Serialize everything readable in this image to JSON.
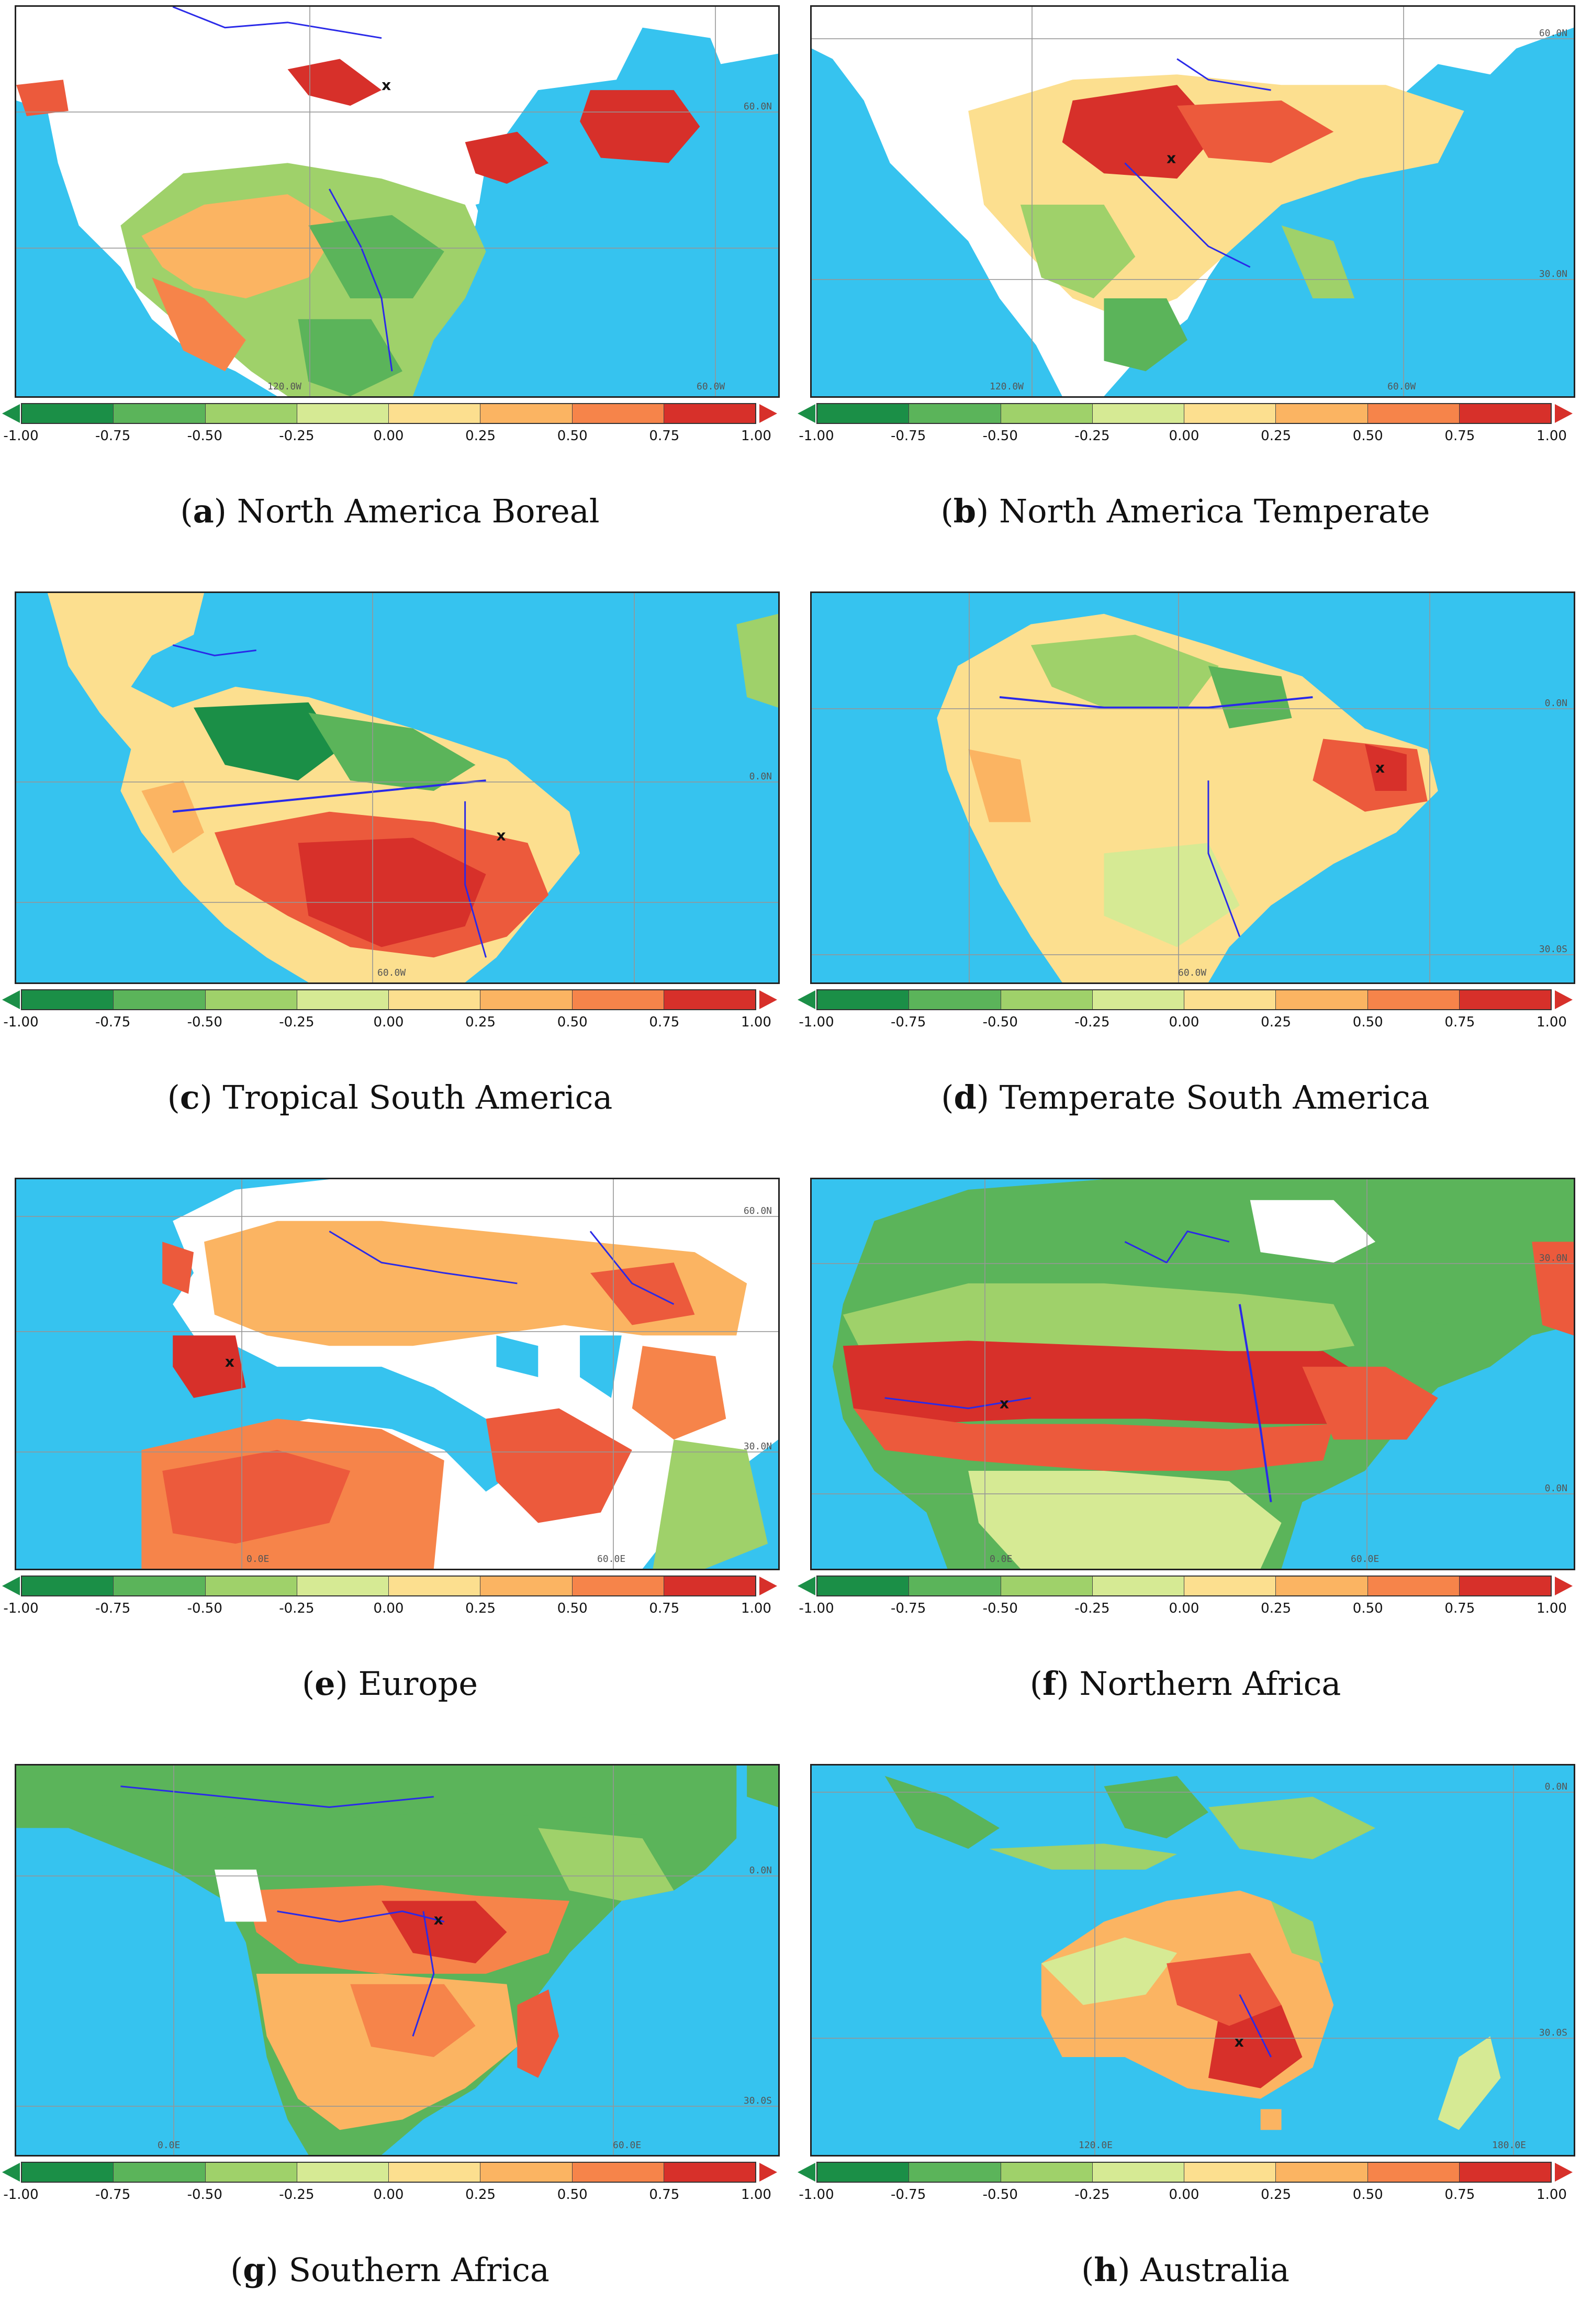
{
  "colors": {
    "ocean": "#36c3ef",
    "land_missing": "#ffffff",
    "river": "#2a2ae8",
    "scale": [
      "#1b8f47",
      "#5bb45a",
      "#9fd16a",
      "#d6ea94",
      "#fcdf8f",
      "#fbb462",
      "#f6844a",
      "#ec5a3c",
      "#d7302a"
    ]
  },
  "colorbar": {
    "ticks": [
      "-1.00",
      "-0.75",
      "-0.50",
      "-0.25",
      "0.00",
      "0.25",
      "0.50",
      "0.75",
      "1.00"
    ],
    "segments": 8
  },
  "panels": [
    {
      "letter": "a",
      "name": "North America Boreal",
      "marker": "x",
      "grid_labels": [
        "60.0N",
        "120.0W",
        "60.0W"
      ]
    },
    {
      "letter": "b",
      "name": "North America Temperate",
      "marker": "x",
      "grid_labels": [
        "60.0N",
        "30.0N",
        "120.0W",
        "60.0W"
      ]
    },
    {
      "letter": "c",
      "name": "Tropical South America",
      "marker": "x",
      "grid_labels": [
        "0.0N",
        "60.0W"
      ]
    },
    {
      "letter": "d",
      "name": "Temperate South America",
      "marker": "x",
      "grid_labels": [
        "0.0N",
        "30.0S",
        "60.0W"
      ]
    },
    {
      "letter": "e",
      "name": "Europe",
      "marker": "x",
      "grid_labels": [
        "60.0N",
        "30.0N",
        "0.0E",
        "60.0E"
      ]
    },
    {
      "letter": "f",
      "name": "Northern Africa",
      "marker": "x",
      "grid_labels": [
        "30.0N",
        "0.0N",
        "0.0E",
        "60.0E"
      ]
    },
    {
      "letter": "g",
      "name": "Southern Africa",
      "marker": "x",
      "grid_labels": [
        "0.0N",
        "30.0S",
        "0.0E",
        "60.0E"
      ]
    },
    {
      "letter": "h",
      "name": "Australia",
      "marker": "x",
      "grid_labels": [
        "0.0N",
        "30.0S",
        "120.0E",
        "180.0E"
      ]
    }
  ]
}
